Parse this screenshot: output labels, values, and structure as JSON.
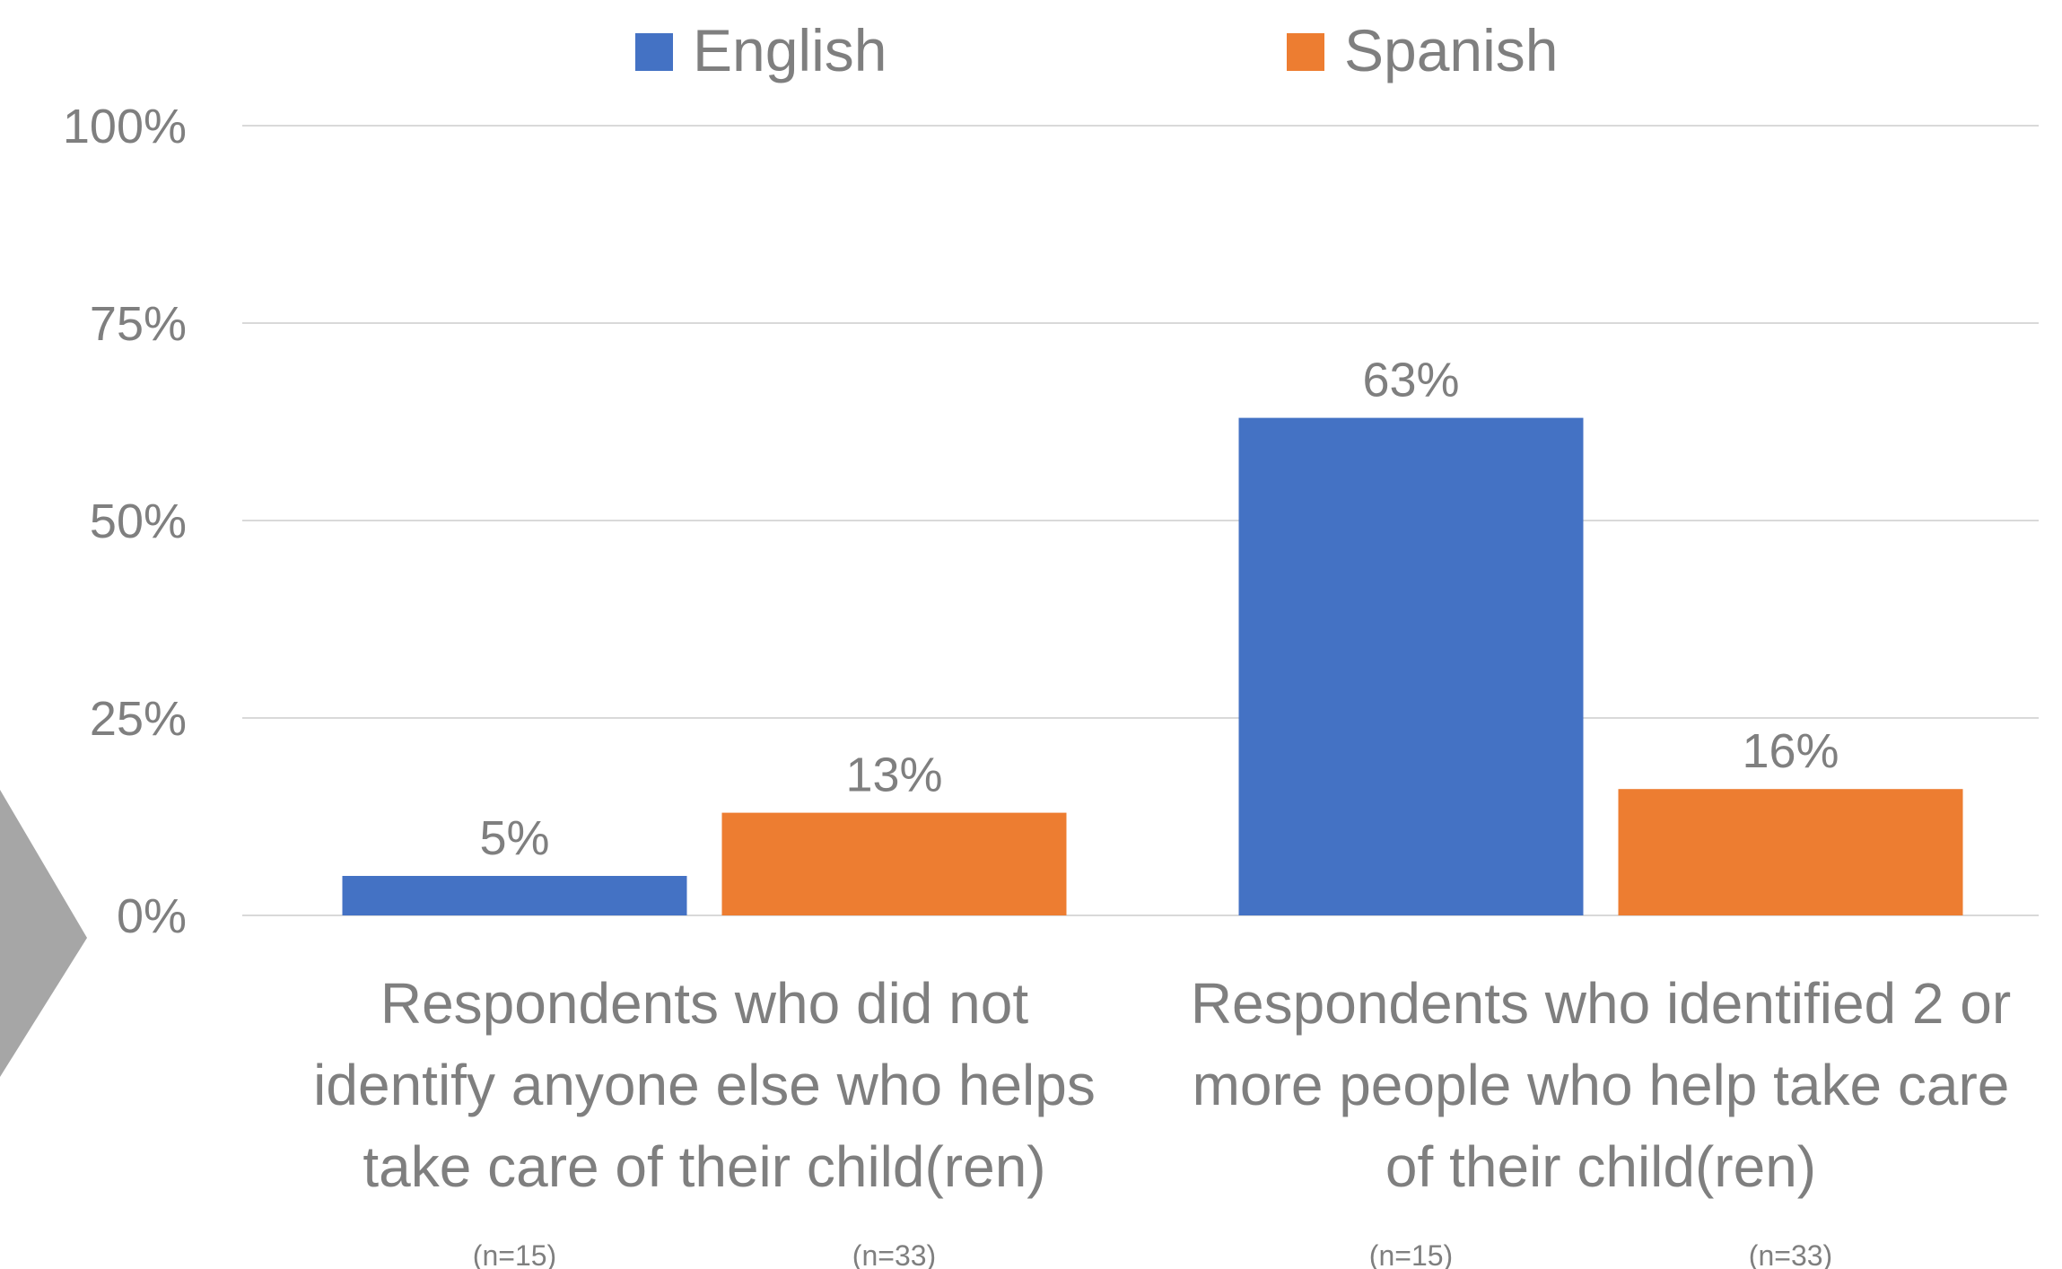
{
  "chart_data": {
    "type": "bar",
    "title": "",
    "xlabel": "",
    "ylabel": "",
    "ylim": [
      0,
      100
    ],
    "yticks": [
      "0%",
      "25%",
      "50%",
      "75%",
      "100%"
    ],
    "ytick_values": [
      0,
      25,
      50,
      75,
      100
    ],
    "grid": true,
    "legend_position": "top-center",
    "categories": [
      [
        "Respondents who did not",
        "identify anyone else who helps",
        "take care of their child(ren)"
      ],
      [
        "Respondents who identified 2 or",
        "more people who help take care",
        "of their child(ren)"
      ]
    ],
    "series": [
      {
        "name": "English",
        "color": "#4472C4",
        "values": [
          5,
          63
        ],
        "labels": [
          "5%",
          "63%"
        ],
        "sample_labels": [
          "(n=15)",
          "(n=15)"
        ]
      },
      {
        "name": "Spanish",
        "color": "#ED7D31",
        "values": [
          13,
          16
        ],
        "labels": [
          "13%",
          "16%"
        ],
        "sample_labels": [
          "(n=33)",
          "(n=33)"
        ]
      }
    ],
    "gridline_color": "#d9d9d9",
    "text_color": "#7f7f7f",
    "decoration_color": "#a6a6a6"
  }
}
